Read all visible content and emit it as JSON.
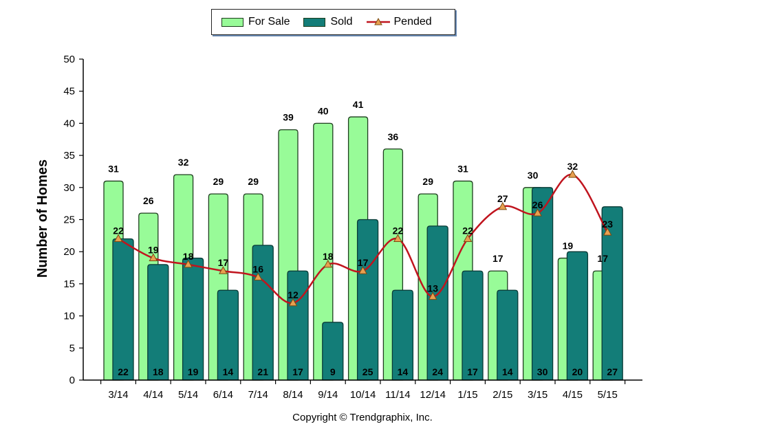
{
  "chart_data": {
    "type": "bar",
    "categories": [
      "3/14",
      "4/14",
      "5/14",
      "6/14",
      "7/14",
      "8/14",
      "9/14",
      "10/14",
      "11/14",
      "12/14",
      "1/15",
      "2/15",
      "3/15",
      "4/15",
      "5/15"
    ],
    "series": [
      {
        "name": "For Sale",
        "type": "bar",
        "color": "#98fb98",
        "values": [
          31,
          26,
          32,
          29,
          29,
          39,
          40,
          41,
          36,
          29,
          31,
          17,
          30,
          19,
          17
        ]
      },
      {
        "name": "Sold",
        "type": "bar",
        "color": "#137d78",
        "values": [
          22,
          18,
          19,
          14,
          21,
          17,
          9,
          25,
          14,
          24,
          17,
          14,
          30,
          20,
          27
        ]
      },
      {
        "name": "Pended",
        "type": "line",
        "color": "#c0141e",
        "marker_color": "#e8a050",
        "values": [
          22,
          19,
          18,
          17,
          16,
          12,
          18,
          17,
          22,
          13,
          22,
          27,
          26,
          32,
          23
        ]
      }
    ],
    "ylabel": "Number of Homes",
    "xlabel": "",
    "ylim": [
      0,
      50
    ],
    "yticks": [
      0,
      5,
      10,
      15,
      20,
      25,
      30,
      35,
      40,
      45,
      50
    ],
    "legend_position": "top",
    "grid": false,
    "footer": "Copyright © Trendgraphix, Inc."
  }
}
